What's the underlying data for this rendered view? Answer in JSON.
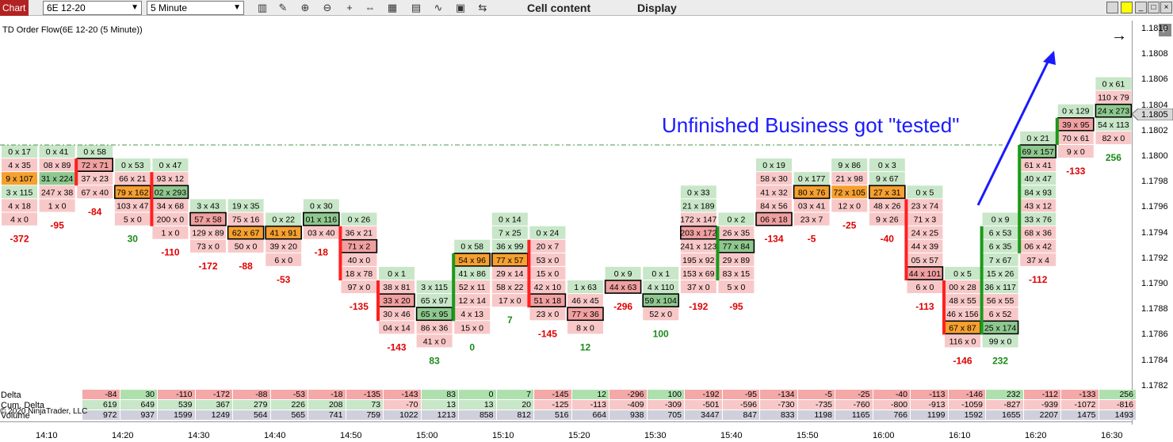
{
  "toolbar": {
    "chart_tab": "Chart",
    "instrument": "6E 12-20",
    "timeframe": "5 Minute",
    "menu_cell_content": "Cell content",
    "menu_display": "Display",
    "icons": [
      "bar-style-icon",
      "pencil-icon",
      "zoom-in-icon",
      "zoom-out-icon",
      "crosshair-icon",
      "move-icon",
      "data-box-icon",
      "indicators-icon",
      "strategies-icon",
      "properties-icon",
      "attach-icon"
    ]
  },
  "chart": {
    "title": "TD Order Flow(6E 12-20 (5 Minute))",
    "annotation": "Unfinished Business got \"tested\"",
    "current_price": "1.1805",
    "f_button": "F",
    "price_ticks": [
      "1.1810",
      "1.1808",
      "1.1806",
      "1.1804",
      "1.1802",
      "1.1800",
      "1.1798",
      "1.1796",
      "1.1794",
      "1.1792",
      "1.1790",
      "1.1788",
      "1.1786",
      "1.1784",
      "1.1782"
    ],
    "time_ticks": [
      "14:10",
      "14:20",
      "14:30",
      "14:40",
      "14:50",
      "15:00",
      "15:10",
      "15:20",
      "15:30",
      "15:40",
      "15:50",
      "16:00",
      "16:10",
      "16:20",
      "16:30"
    ],
    "bars": [
      {
        "delta": "-372",
        "dc": "neg",
        "rows": [
          [
            "0 x 17",
            "g"
          ],
          [
            "4 x 35",
            "p"
          ],
          [
            "9 x 107",
            "o"
          ],
          [
            "3 x 115",
            "g"
          ],
          [
            "4 x 18",
            "p"
          ],
          [
            "4 x 0",
            "p"
          ]
        ],
        "top": 0,
        "dir": "none"
      },
      {
        "delta": "-95",
        "dc": "neg",
        "rows": [
          [
            "0 x 41",
            "g"
          ],
          [
            "08 x 89",
            "p"
          ],
          [
            "31 x 224",
            "gg"
          ],
          [
            "247 x 38",
            "p"
          ],
          [
            "1 x 0",
            "p"
          ]
        ],
        "top": 0,
        "dir": "none"
      },
      {
        "delta": "-84",
        "dc": "neg",
        "rows": [
          [
            "0 x 58",
            "g"
          ],
          [
            "72 x 71",
            "rb"
          ],
          [
            "37 x 23",
            "p"
          ],
          [
            "67 x 40",
            "p"
          ]
        ],
        "top": 0,
        "dir": "red"
      },
      {
        "delta": "30",
        "dc": "pos",
        "rows": [
          [
            "0 x 53",
            "g"
          ],
          [
            "66 x 21",
            "p"
          ],
          [
            "79 x 162",
            "ob"
          ],
          [
            "103 x 47",
            "p"
          ],
          [
            "5 x 0",
            "p"
          ]
        ],
        "top": 1,
        "dir": "none"
      },
      {
        "delta": "-110",
        "dc": "neg",
        "rows": [
          [
            "0 x 47",
            "g"
          ],
          [
            "93 x 12",
            "p"
          ],
          [
            "02 x 293",
            "gb"
          ],
          [
            "34 x 68",
            "p"
          ],
          [
            "200 x 0",
            "p"
          ],
          [
            "1 x 0",
            "p"
          ]
        ],
        "top": 1,
        "dir": "red"
      },
      {
        "delta": "-172",
        "dc": "neg",
        "rows": [
          [
            "3 x 43",
            "g"
          ],
          [
            "57 x 58",
            "rb"
          ],
          [
            "129 x 89",
            "p"
          ],
          [
            "73 x 0",
            "p"
          ]
        ],
        "top": 4,
        "dir": "none"
      },
      {
        "delta": "-88",
        "dc": "neg",
        "rows": [
          [
            "19 x 35",
            "g"
          ],
          [
            "75 x 16",
            "p"
          ],
          [
            "62 x 67",
            "ob"
          ],
          [
            "50 x 0",
            "p"
          ]
        ],
        "top": 4,
        "dir": "none"
      },
      {
        "delta": "-53",
        "dc": "neg",
        "rows": [
          [
            "0 x 22",
            "g"
          ],
          [
            "41 x 91",
            "ob"
          ],
          [
            "39 x 20",
            "p"
          ],
          [
            "6 x 0",
            "p"
          ]
        ],
        "top": 5,
        "dir": "none"
      },
      {
        "delta": "-18",
        "dc": "neg",
        "rows": [
          [
            "0 x 30",
            "g"
          ],
          [
            "01 x 116",
            "gb"
          ],
          [
            "03 x 40",
            "p"
          ]
        ],
        "top": 4,
        "dir": "none"
      },
      {
        "delta": "-135",
        "dc": "neg",
        "rows": [
          [
            "0 x 26",
            "g"
          ],
          [
            "36 x 21",
            "p"
          ],
          [
            "71 x 2",
            "rb"
          ],
          [
            "40 x 0",
            "p"
          ],
          [
            "18 x 78",
            "p"
          ],
          [
            "97 x 0",
            "p"
          ]
        ],
        "top": 5,
        "dir": "red"
      },
      {
        "delta": "-143",
        "dc": "neg",
        "rows": [
          [
            "0 x 1",
            "g"
          ],
          [
            "38 x 81",
            "p"
          ],
          [
            "33 x 20",
            "rb"
          ],
          [
            "30 x 46",
            "p"
          ],
          [
            "04 x 14",
            "p"
          ]
        ],
        "top": 9,
        "dir": "red"
      },
      {
        "delta": "83",
        "dc": "pos",
        "rows": [
          [
            "3 x 115",
            "g"
          ],
          [
            "65 x 97",
            "g"
          ],
          [
            "65 x 95",
            "gb"
          ],
          [
            "86 x 36",
            "p"
          ],
          [
            "41 x 0",
            "p"
          ]
        ],
        "top": 10,
        "dir": "none"
      },
      {
        "delta": "0",
        "dc": "pos",
        "rows": [
          [
            "0 x 58",
            "g"
          ],
          [
            "54 x 96",
            "ob"
          ],
          [
            "41 x 86",
            "g"
          ],
          [
            "52 x 11",
            "p"
          ],
          [
            "12 x 14",
            "p"
          ],
          [
            "4 x 13",
            "p"
          ],
          [
            "15 x 0",
            "p"
          ]
        ],
        "top": 7,
        "dir": "green"
      },
      {
        "delta": "7",
        "dc": "pos",
        "rows": [
          [
            "0 x 14",
            "g"
          ],
          [
            "7 x 25",
            "g"
          ],
          [
            "36 x 99",
            "g"
          ],
          [
            "77 x 57",
            "ob"
          ],
          [
            "29 x 14",
            "p"
          ],
          [
            "58 x 22",
            "p"
          ],
          [
            "17 x 0",
            "p"
          ]
        ],
        "top": 5,
        "dir": "none"
      },
      {
        "delta": "-145",
        "dc": "neg",
        "rows": [
          [
            "0 x 24",
            "g"
          ],
          [
            "20 x 7",
            "p"
          ],
          [
            "53 x 0",
            "p"
          ],
          [
            "15 x 0",
            "p"
          ],
          [
            "42 x 10",
            "p"
          ],
          [
            "51 x 18",
            "rb"
          ],
          [
            "23 x 0",
            "p"
          ]
        ],
        "top": 6,
        "dir": "red"
      },
      {
        "delta": "12",
        "dc": "pos",
        "rows": [
          [
            "1 x 63",
            "g"
          ],
          [
            "46 x 45",
            "p"
          ],
          [
            "77 x 36",
            "rb"
          ],
          [
            "8 x 0",
            "p"
          ]
        ],
        "top": 10,
        "dir": "none"
      },
      {
        "delta": "-296",
        "dc": "neg",
        "rows": [
          [
            "0 x 9",
            "g"
          ],
          [
            "44 x 63",
            "rb"
          ]
        ],
        "top": 9,
        "dir": "none"
      },
      {
        "delta": "100",
        "dc": "pos",
        "rows": [
          [
            "0 x 1",
            "g"
          ],
          [
            "4 x 110",
            "g"
          ],
          [
            "59 x 104",
            "gb"
          ],
          [
            "52 x 0",
            "p"
          ]
        ],
        "top": 9,
        "dir": "none"
      },
      {
        "delta": "-192",
        "dc": "neg",
        "rows": [
          [
            "0 x 33",
            "g"
          ],
          [
            "21 x 189",
            "g"
          ],
          [
            "172 x 147",
            "p"
          ],
          [
            "203 x 172",
            "rb"
          ],
          [
            "241 x 123",
            "p"
          ],
          [
            "195 x 92",
            "p"
          ],
          [
            "153 x 69",
            "p"
          ],
          [
            "37 x 0",
            "p"
          ]
        ],
        "top": 3,
        "dir": "none"
      },
      {
        "delta": "-95",
        "dc": "neg",
        "rows": [
          [
            "0 x 2",
            "g"
          ],
          [
            "26 x 35",
            "p"
          ],
          [
            "77 x 84",
            "gb"
          ],
          [
            "29 x 89",
            "p"
          ],
          [
            "83 x 15",
            "p"
          ],
          [
            "5 x 0",
            "p"
          ]
        ],
        "top": 5,
        "dir": "green"
      },
      {
        "delta": "-134",
        "dc": "neg",
        "rows": [
          [
            "0 x 19",
            "g"
          ],
          [
            "58 x 30",
            "p"
          ],
          [
            "41 x 32",
            "p"
          ],
          [
            "84 x 56",
            "p"
          ],
          [
            "06 x 18",
            "rb"
          ]
        ],
        "top": 1,
        "dir": "none"
      },
      {
        "delta": "-5",
        "dc": "neg",
        "rows": [
          [
            "0 x 177",
            "g"
          ],
          [
            "80 x 76",
            "ob"
          ],
          [
            "03 x 41",
            "p"
          ],
          [
            "23 x 7",
            "p"
          ]
        ],
        "top": 2,
        "dir": "none"
      },
      {
        "delta": "-25",
        "dc": "neg",
        "rows": [
          [
            "9 x 86",
            "g"
          ],
          [
            "21 x 98",
            "p"
          ],
          [
            "72 x 105",
            "o"
          ],
          [
            "12 x 0",
            "p"
          ]
        ],
        "top": 1,
        "dir": "none"
      },
      {
        "delta": "-40",
        "dc": "neg",
        "rows": [
          [
            "0 x 3",
            "g"
          ],
          [
            "9 x 67",
            "g"
          ],
          [
            "27 x 31",
            "ob"
          ],
          [
            "48 x 26",
            "p"
          ],
          [
            "9 x 26",
            "p"
          ]
        ],
        "top": 1,
        "dir": "none"
      },
      {
        "delta": "-113",
        "dc": "neg",
        "rows": [
          [
            "0 x 5",
            "g"
          ],
          [
            "23 x 74",
            "p"
          ],
          [
            "71 x 3",
            "p"
          ],
          [
            "24 x 25",
            "p"
          ],
          [
            "44 x 39",
            "p"
          ],
          [
            "05 x 57",
            "p"
          ],
          [
            "44 x 101",
            "rb"
          ],
          [
            "6 x 0",
            "p"
          ]
        ],
        "top": 3,
        "dir": "red"
      },
      {
        "delta": "-146",
        "dc": "neg",
        "rows": [
          [
            "0 x 5",
            "g"
          ],
          [
            "00 x 28",
            "p"
          ],
          [
            "48 x 55",
            "p"
          ],
          [
            "46 x 156",
            "p"
          ],
          [
            "67 x 87",
            "ob"
          ],
          [
            "116 x 0",
            "p"
          ]
        ],
        "top": 9,
        "dir": "red"
      },
      {
        "delta": "232",
        "dc": "pos",
        "rows": [
          [
            "0 x 9",
            "g"
          ],
          [
            "6 x 53",
            "g"
          ],
          [
            "6 x 35",
            "g"
          ],
          [
            "7 x 67",
            "g"
          ],
          [
            "15 x 26",
            "g"
          ],
          [
            "36 x 117",
            "g"
          ],
          [
            "56 x 55",
            "p"
          ],
          [
            "6 x 52",
            "p"
          ],
          [
            "25 x 174",
            "gb"
          ],
          [
            "99 x 0",
            "g"
          ]
        ],
        "top": 5,
        "dir": "green"
      },
      {
        "delta": "-112",
        "dc": "neg",
        "rows": [
          [
            "0 x 21",
            "g"
          ],
          [
            "69 x 157",
            "gb"
          ],
          [
            "61 x 41",
            "p"
          ],
          [
            "40 x 47",
            "g"
          ],
          [
            "84 x 93",
            "g"
          ],
          [
            "43 x 12",
            "p"
          ],
          [
            "33 x 76",
            "g"
          ],
          [
            "68 x 36",
            "p"
          ],
          [
            "06 x 42",
            "p"
          ],
          [
            "37 x 4",
            "p"
          ]
        ],
        "top": -1,
        "dir": "green"
      },
      {
        "delta": "-133",
        "dc": "neg",
        "rows": [
          [
            "0 x 129",
            "g"
          ],
          [
            "39 x 95",
            "rb"
          ],
          [
            "70 x 61",
            "p"
          ],
          [
            "9 x 0",
            "p"
          ]
        ],
        "top": -3,
        "dir": "green"
      },
      {
        "delta": "256",
        "dc": "pos",
        "rows": [
          [
            "0 x 61",
            "g"
          ],
          [
            "110 x 79",
            "p"
          ],
          [
            "24 x 273",
            "gb"
          ],
          [
            "54 x 113",
            "g"
          ],
          [
            "82 x 0",
            "p"
          ]
        ],
        "top": -5,
        "dir": "none"
      }
    ]
  },
  "table": {
    "labels": [
      "Delta",
      "Cum. Delta",
      "Volume"
    ],
    "copyright": "© 2020 NinjaTrader, LLC",
    "delta": [
      "-84",
      "30",
      "-110",
      "-172",
      "-88",
      "-53",
      "-18",
      "-135",
      "-143",
      "83",
      "0",
      "7",
      "-145",
      "12",
      "-296",
      "100",
      "-192",
      "-95",
      "-134",
      "-5",
      "-25",
      "-40",
      "-113",
      "-146",
      "232",
      "-112",
      "-133",
      "256"
    ],
    "cum_delta": [
      "619",
      "649",
      "539",
      "367",
      "279",
      "226",
      "208",
      "73",
      "-70",
      "13",
      "13",
      "20",
      "-125",
      "-113",
      "-409",
      "-309",
      "-501",
      "-596",
      "-730",
      "-735",
      "-760",
      "-800",
      "-913",
      "-1059",
      "-827",
      "-939",
      "-1072",
      "-816"
    ],
    "volume": [
      "972",
      "937",
      "1599",
      "1249",
      "564",
      "565",
      "741",
      "759",
      "1022",
      "1213",
      "858",
      "812",
      "516",
      "664",
      "938",
      "705",
      "3447",
      "847",
      "833",
      "1198",
      "1165",
      "766",
      "1199",
      "1592",
      "1655",
      "2207",
      "1475",
      "1493"
    ]
  },
  "colors": {
    "positive": "#1a8a1a",
    "negative": "#e00000",
    "annotation": "#1a1aff",
    "green_cell": "#c8e6c8",
    "pink_cell": "#f8c8c8",
    "orange_cell": "#f5a030"
  }
}
